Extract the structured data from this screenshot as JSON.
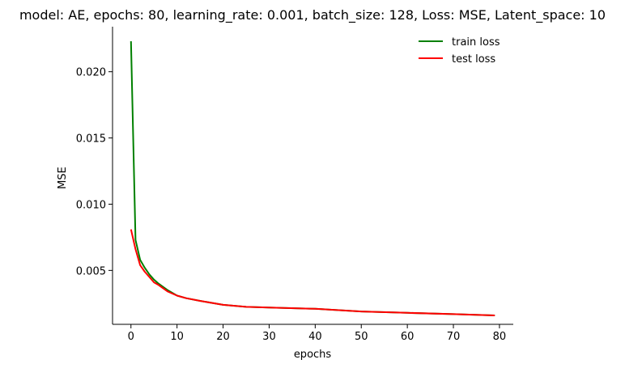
{
  "chart_data": {
    "type": "line",
    "title": "model: AE, epochs: 80, learning_rate: 0.001, batch_size: 128, Loss: MSE, Latent_space: 10",
    "xlabel": "epochs",
    "ylabel": "MSE",
    "xlim": [
      -4,
      83
    ],
    "ylim": [
      0.00093,
      0.0234
    ],
    "xticks": [
      0,
      10,
      20,
      30,
      40,
      50,
      60,
      70,
      80
    ],
    "xtick_labels": [
      "0",
      "10",
      "20",
      "30",
      "40",
      "50",
      "60",
      "70",
      "80"
    ],
    "yticks": [
      0.005,
      0.01,
      0.015,
      0.02
    ],
    "ytick_labels": [
      "0.005",
      "0.010",
      "0.015",
      "0.020"
    ],
    "grid": false,
    "legend_position": "top-right",
    "x": [
      0,
      1,
      2,
      3,
      4,
      5,
      6,
      8,
      10,
      12,
      15,
      20,
      25,
      30,
      40,
      50,
      60,
      70,
      79
    ],
    "series": [
      {
        "name": "train loss",
        "color": "#008000",
        "values": [
          0.0223,
          0.0073,
          0.0058,
          0.0052,
          0.0047,
          0.0043,
          0.004,
          0.0035,
          0.0031,
          0.0029,
          0.0027,
          0.0024,
          0.00225,
          0.0022,
          0.0021,
          0.0019,
          0.0018,
          0.0017,
          0.0016
        ]
      },
      {
        "name": "test loss",
        "color": "#ff0000",
        "values": [
          0.0081,
          0.0066,
          0.0054,
          0.0049,
          0.0045,
          0.0041,
          0.0039,
          0.0034,
          0.0031,
          0.0029,
          0.0027,
          0.0024,
          0.00225,
          0.0022,
          0.0021,
          0.0019,
          0.0018,
          0.0017,
          0.0016
        ]
      }
    ]
  }
}
